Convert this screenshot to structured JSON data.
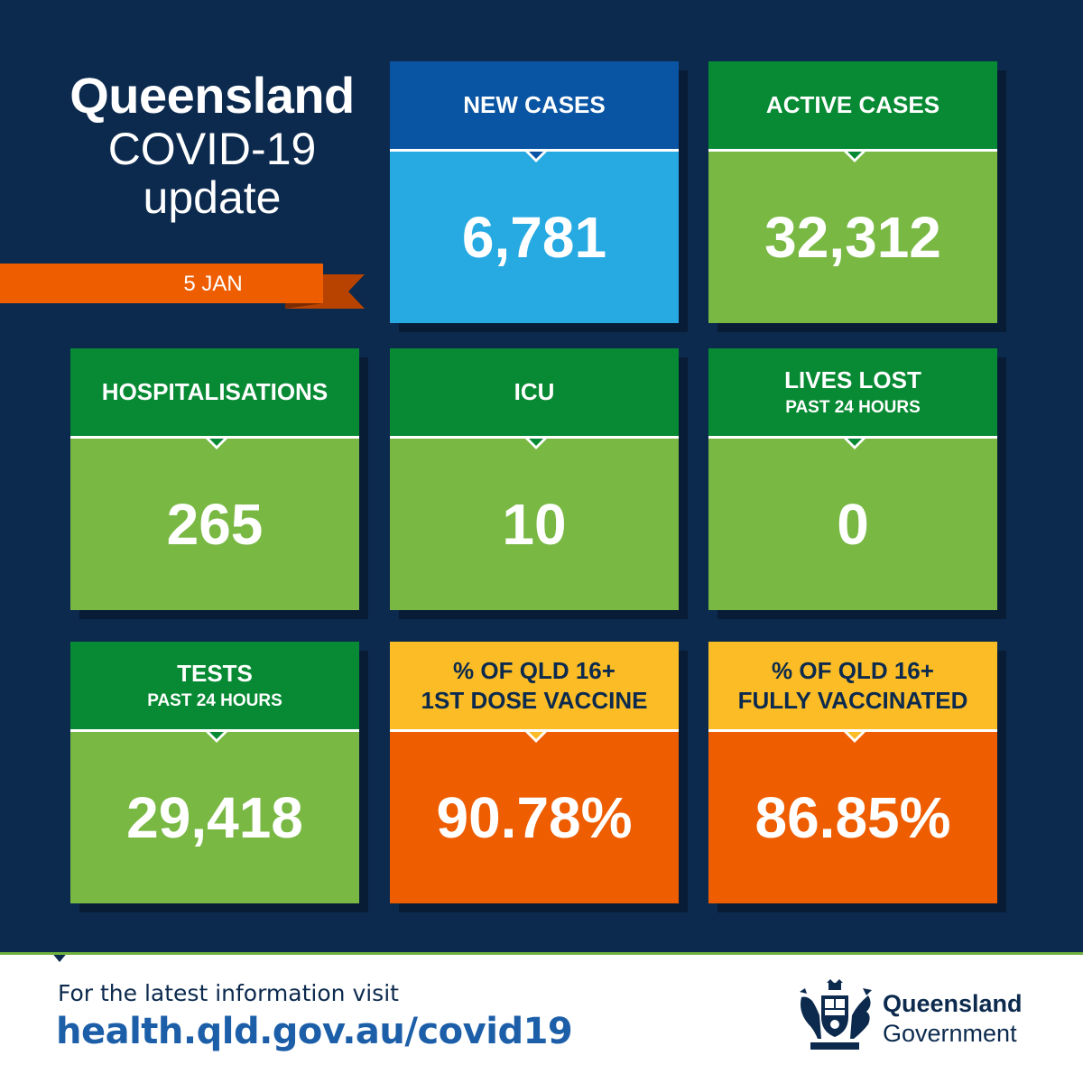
{
  "header": {
    "title_line1": "Queensland",
    "title_line2": "COVID-19",
    "title_line3": "update",
    "date": "5 JAN"
  },
  "colors": {
    "background": "#0c2a4e",
    "blue_head": "#0a55a3",
    "blue_body": "#27aae1",
    "green_head": "#078a33",
    "green_body": "#78b843",
    "yellow_head": "#fbbc25",
    "orange_body": "#ee5d00",
    "ribbon": "#ee5d00"
  },
  "tiles": [
    {
      "label": "NEW CASES",
      "sublabel": "",
      "value": "6,781"
    },
    {
      "label": "ACTIVE CASES",
      "sublabel": "",
      "value": "32,312"
    },
    {
      "label": "HOSPITALISATIONS",
      "sublabel": "",
      "value": "265"
    },
    {
      "label": "ICU",
      "sublabel": "",
      "value": "10"
    },
    {
      "label": "LIVES LOST",
      "sublabel": "PAST 24 HOURS",
      "value": "0"
    },
    {
      "label": "TESTS",
      "sublabel": "PAST 24 HOURS",
      "value": "29,418"
    },
    {
      "label": "% OF QLD 16+",
      "sublabel": "1ST DOSE VACCINE",
      "value": "90.78%"
    },
    {
      "label": "% OF QLD 16+",
      "sublabel": "FULLY VACCINATED",
      "value": "86.85%"
    }
  ],
  "footer": {
    "intro": "For the latest information visit",
    "url": "health.qld.gov.au/covid19",
    "gov_name_1": "Queensland",
    "gov_name_2": "Government",
    "logo_icon": "queensland-coat-of-arms-icon"
  }
}
